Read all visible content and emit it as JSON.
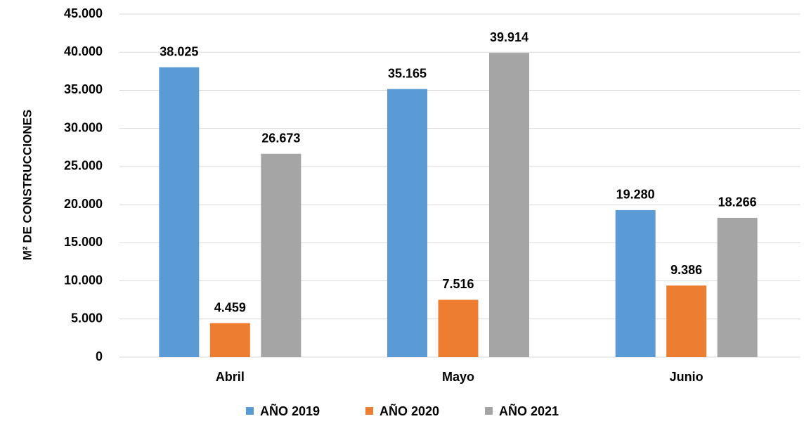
{
  "chart_data": {
    "type": "bar",
    "y_label": "M² DE CONSTRUCCIONES",
    "categories": [
      "Abril",
      "Mayo",
      "Junio"
    ],
    "series": [
      {
        "name": "AÑO 2019",
        "color": "#5b9bd5",
        "values": [
          38025,
          35165,
          19280
        ],
        "value_labels": [
          "38.025",
          "35.165",
          "19.280"
        ]
      },
      {
        "name": "AÑO 2020",
        "color": "#ed7d31",
        "values": [
          4459,
          7516,
          9386
        ],
        "value_labels": [
          "4.459",
          "7.516",
          "9.386"
        ]
      },
      {
        "name": "AÑO 2021",
        "color": "#a5a5a5",
        "values": [
          26673,
          39914,
          18266
        ],
        "value_labels": [
          "26.673",
          "39.914",
          "18.266"
        ]
      }
    ],
    "ylim": [
      0,
      45000
    ],
    "yticks": [
      0,
      {
        "value": 5000,
        "label": "5.000"
      },
      {
        "value": 10000,
        "label": "10.000"
      },
      {
        "value": 15000,
        "label": "15.000"
      },
      {
        "value": 20000,
        "label": "20.000"
      },
      {
        "value": 25000,
        "label": "25.000"
      },
      {
        "value": 30000,
        "label": "30.000"
      },
      {
        "value": 35000,
        "label": "35.000"
      },
      {
        "value": 40000,
        "label": "40.000"
      },
      {
        "value": 45000,
        "label": "45.000"
      }
    ],
    "grid": true,
    "legend": "bottom"
  }
}
